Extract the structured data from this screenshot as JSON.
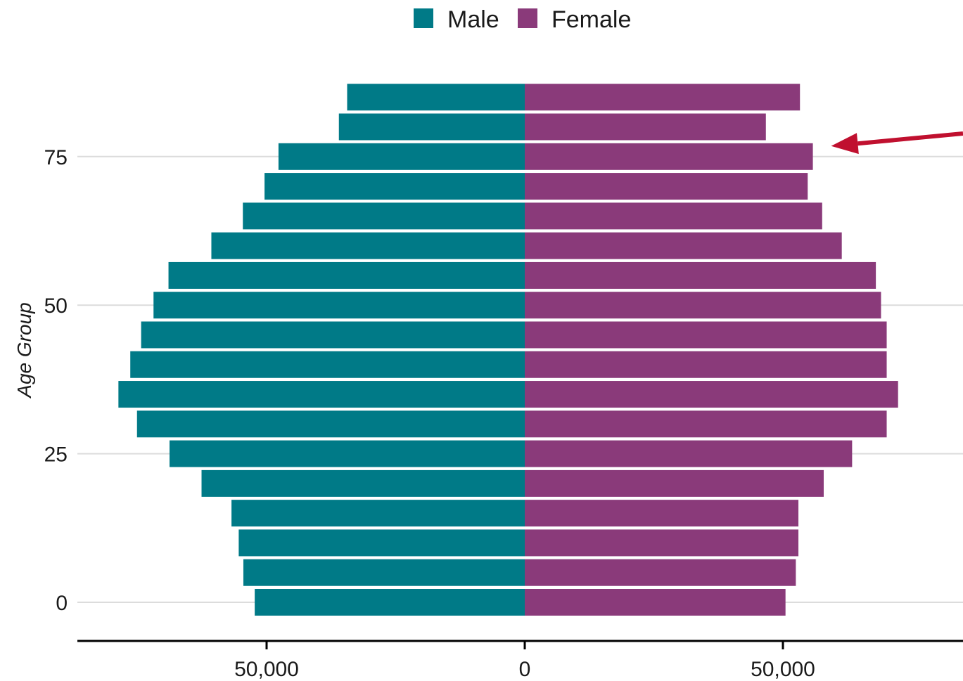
{
  "chart_data": {
    "type": "bar",
    "orientation": "horizontal",
    "layout": "population-pyramid",
    "title": "",
    "xlabel": "",
    "ylabel": "Age Group",
    "ages": [
      0,
      5,
      10,
      15,
      20,
      25,
      30,
      35,
      40,
      45,
      50,
      55,
      60,
      65,
      70,
      75,
      80,
      85
    ],
    "series": [
      {
        "name": "Male",
        "color": "#007A87",
        "direction": "left",
        "values": [
          52300,
          54500,
          55400,
          56800,
          62600,
          68800,
          75100,
          78700,
          76400,
          74300,
          71900,
          69000,
          60700,
          54600,
          50400,
          47700,
          36000,
          34400
        ]
      },
      {
        "name": "Female",
        "color": "#8A3A7A",
        "direction": "right",
        "values": [
          50500,
          52500,
          53000,
          53000,
          57900,
          63400,
          70100,
          72300,
          70100,
          70100,
          69000,
          68000,
          61400,
          57600,
          54800,
          55800,
          46700,
          53300
        ]
      }
    ],
    "xlim": [
      -86000,
      85000
    ],
    "ylim": [
      -7,
      92
    ],
    "y_ticks": [
      0,
      25,
      50,
      75
    ],
    "x_ticks": [
      {
        "value": -50000,
        "label": "50,000"
      },
      {
        "value": 0,
        "label": "0"
      },
      {
        "value": 50000,
        "label": "50,000"
      }
    ],
    "legend": {
      "position": "top",
      "items": [
        "Male",
        "Female"
      ]
    },
    "grid": {
      "horizontal": true,
      "vertical": false
    },
    "annotation": {
      "type": "arrow",
      "color": "#C0102F",
      "target_age": 75,
      "target_series": "Female"
    }
  }
}
